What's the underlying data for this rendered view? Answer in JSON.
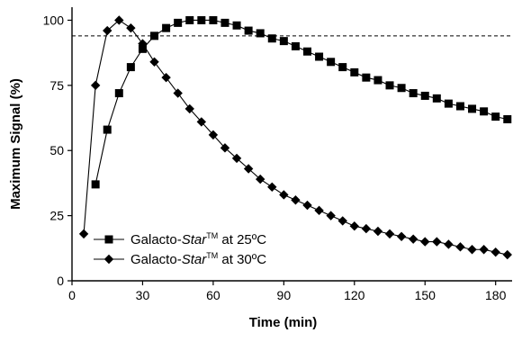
{
  "chart_data": {
    "type": "line",
    "title": "",
    "xlabel": "Time (min)",
    "ylabel": "Maximum Signal (%)",
    "xlim": [
      0,
      187
    ],
    "ylim": [
      0,
      105
    ],
    "xticks": [
      0,
      30,
      60,
      90,
      120,
      150,
      180
    ],
    "yticks": [
      0,
      25,
      50,
      75,
      100
    ],
    "reference_line": {
      "y": 94,
      "style": "dashed"
    },
    "grid": false,
    "legend_position": "bottom-left",
    "series": [
      {
        "name": "Galacto-Star™ at 25ºC",
        "name_parts": {
          "pre": "Galacto-",
          "italic": "Star",
          "tm": "TM",
          "post": " at 25ºC"
        },
        "marker": "square",
        "color": "#000000",
        "x": [
          10,
          15,
          20,
          25,
          30,
          35,
          40,
          45,
          50,
          55,
          60,
          65,
          70,
          75,
          80,
          85,
          90,
          95,
          100,
          105,
          110,
          115,
          120,
          125,
          130,
          135,
          140,
          145,
          150,
          155,
          160,
          165,
          170,
          175,
          180,
          185
        ],
        "y": [
          37,
          58,
          72,
          82,
          89,
          94,
          97,
          99,
          100,
          100,
          100,
          99,
          98,
          96,
          95,
          93,
          92,
          90,
          88,
          86,
          84,
          82,
          80,
          78,
          77,
          75,
          74,
          72,
          71,
          70,
          68,
          67,
          66,
          65,
          63,
          62
        ]
      },
      {
        "name": "Galacto-Star™ at 30ºC",
        "name_parts": {
          "pre": "Galacto-",
          "italic": "Star",
          "tm": "TM",
          "post": " at 30ºC"
        },
        "marker": "diamond",
        "color": "#000000",
        "x": [
          5,
          10,
          15,
          20,
          25,
          30,
          35,
          40,
          45,
          50,
          55,
          60,
          65,
          70,
          75,
          80,
          85,
          90,
          95,
          100,
          105,
          110,
          115,
          120,
          125,
          130,
          135,
          140,
          145,
          150,
          155,
          160,
          165,
          170,
          175,
          180,
          185
        ],
        "y": [
          18,
          75,
          96,
          100,
          97,
          91,
          84,
          78,
          72,
          66,
          61,
          56,
          51,
          47,
          43,
          39,
          36,
          33,
          31,
          29,
          27,
          25,
          23,
          21,
          20,
          19,
          18,
          17,
          16,
          15,
          15,
          14,
          13,
          12,
          12,
          11,
          10
        ]
      }
    ]
  }
}
